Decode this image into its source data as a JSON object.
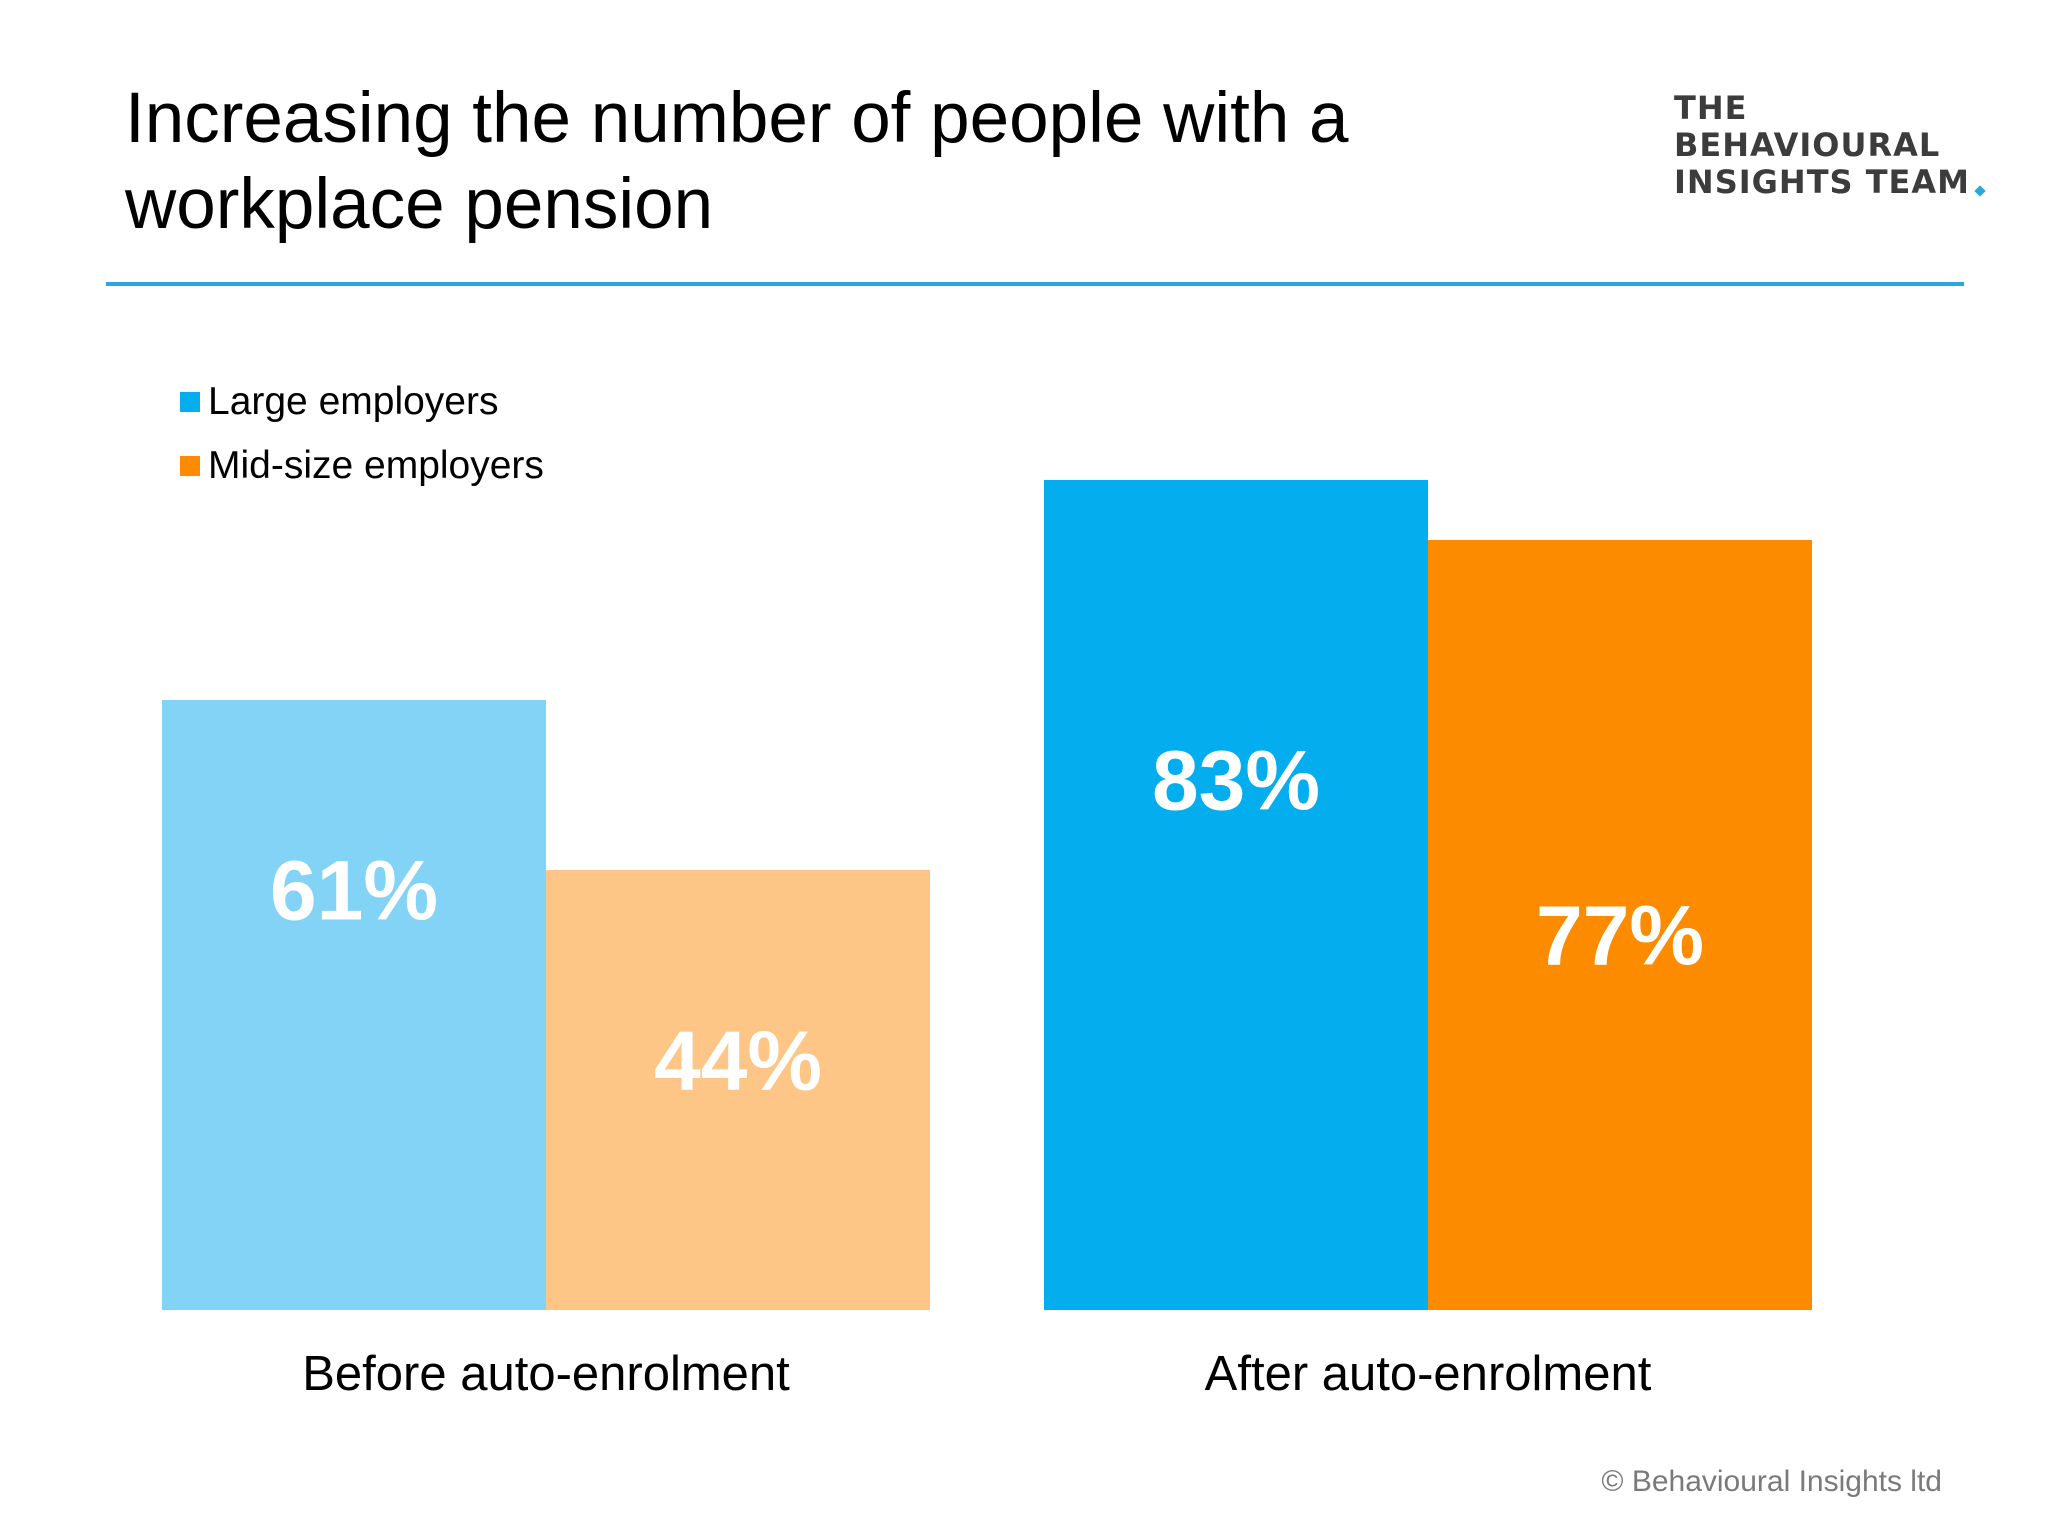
{
  "title": "Increasing the number of people with a workplace pension",
  "logo": {
    "lines": [
      "THE",
      "BEHAVIOURAL",
      "INSIGHTS TEAM"
    ]
  },
  "copyright": "© Behavioural Insights ltd",
  "colors": {
    "rule": "#29a8e0",
    "large_before": "#82d3f5",
    "mid_before": "#fdc586",
    "large_after": "#03adee",
    "mid_after": "#fd8b00",
    "legend_large": "#03adee",
    "legend_mid": "#fd8b00"
  },
  "chart_data": {
    "type": "bar",
    "categories": [
      "Before auto-enrolment",
      "After auto-enrolment"
    ],
    "series": [
      {
        "name": "Large employers",
        "values": [
          61,
          83
        ],
        "labels": [
          "61%",
          "83%"
        ]
      },
      {
        "name": "Mid-size employers",
        "values": [
          44,
          77
        ],
        "labels": [
          "44%",
          "77%"
        ]
      }
    ],
    "ylim": [
      0,
      100
    ],
    "grid": false,
    "legend_position": "top-left"
  }
}
